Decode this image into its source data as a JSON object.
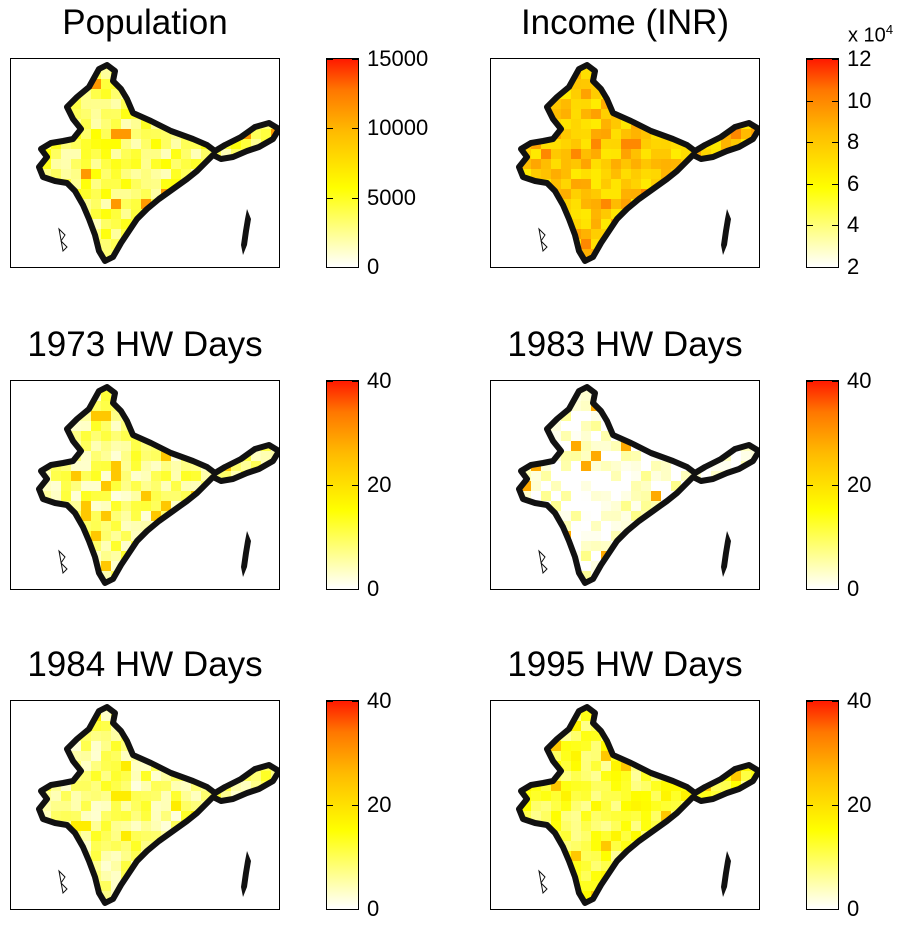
{
  "chart_data": [
    {
      "type": "heatmap",
      "title": "Population",
      "colorbar": {
        "min": 0,
        "max": 15000,
        "ticks": [
          "0",
          "5000",
          "10000",
          "15000"
        ],
        "multiplier": ""
      },
      "colormap": [
        "#ffffff",
        "#ffff00",
        "#ff9900",
        "#ff1a00"
      ],
      "dominant_level": 0.25,
      "hotspot_level": 0.75,
      "grid": false
    },
    {
      "type": "heatmap",
      "title": "Income (INR)",
      "colorbar": {
        "min": 2,
        "max": 12,
        "ticks": [
          "2",
          "4",
          "6",
          "8",
          "10",
          "12"
        ],
        "multiplier": "x 10",
        "multiplier_exp": "4"
      },
      "colormap": [
        "#ffffff",
        "#ffff00",
        "#ff9900",
        "#ff1a00"
      ],
      "dominant_level": 0.6,
      "hotspot_level": 0.8,
      "grid": false
    },
    {
      "type": "heatmap",
      "title": "1973 HW Days",
      "colorbar": {
        "min": 0,
        "max": 40,
        "ticks": [
          "0",
          "20",
          "40"
        ],
        "multiplier": ""
      },
      "colormap": [
        "#ffffff",
        "#ffff00",
        "#ff9900",
        "#ff1a00"
      ],
      "dominant_level": 0.2,
      "hotspot_level": 0.6,
      "grid": false
    },
    {
      "type": "heatmap",
      "title": "1983 HW Days",
      "colorbar": {
        "min": 0,
        "max": 40,
        "ticks": [
          "0",
          "20",
          "40"
        ],
        "multiplier": ""
      },
      "colormap": [
        "#ffffff",
        "#ffff00",
        "#ff9900",
        "#ff1a00"
      ],
      "dominant_level": 0.05,
      "hotspot_level": 0.7,
      "grid": false
    },
    {
      "type": "heatmap",
      "title": "1984 HW Days",
      "colorbar": {
        "min": 0,
        "max": 40,
        "ticks": [
          "0",
          "20",
          "40"
        ],
        "multiplier": ""
      },
      "colormap": [
        "#ffffff",
        "#ffff00",
        "#ff9900",
        "#ff1a00"
      ],
      "dominant_level": 0.2,
      "hotspot_level": 0.45,
      "grid": false
    },
    {
      "type": "heatmap",
      "title": "1995 HW Days",
      "colorbar": {
        "min": 0,
        "max": 40,
        "ticks": [
          "0",
          "20",
          "40"
        ],
        "multiplier": ""
      },
      "colormap": [
        "#ffffff",
        "#ffff00",
        "#ff9900",
        "#ff1a00"
      ],
      "dominant_level": 0.3,
      "hotspot_level": 0.6,
      "grid": false
    }
  ]
}
